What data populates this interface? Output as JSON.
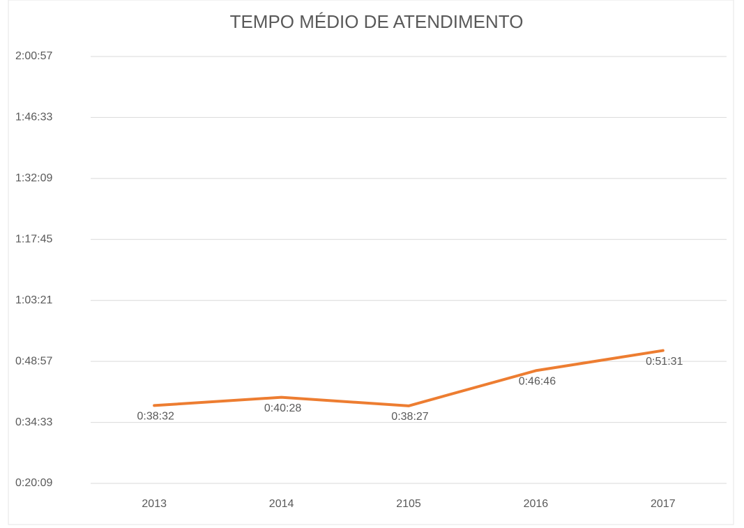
{
  "chart_data": {
    "type": "line",
    "title": "TEMPO MÉDIO DE ATENDIMENTO",
    "categories": [
      "2013",
      "2014",
      "2105",
      "2016",
      "2017"
    ],
    "series": [
      {
        "name": "Tempo médio",
        "color": "#ed7d31",
        "values": [
          2312,
          2428,
          2307,
          2806,
          3091
        ],
        "value_labels": [
          "0:38:32",
          "0:40:28",
          "0:38:27",
          "0:46:46",
          "0:51:31"
        ]
      }
    ],
    "ylim": [
      1209,
      7257
    ],
    "yticks": [
      {
        "value": 1209,
        "label": "0:20:09"
      },
      {
        "value": 2073,
        "label": "0:34:33"
      },
      {
        "value": 2937,
        "label": "0:48:57"
      },
      {
        "value": 3801,
        "label": "1:03:21"
      },
      {
        "value": 4665,
        "label": "1:17:45"
      },
      {
        "value": 5529,
        "label": "1:32:09"
      },
      {
        "value": 6393,
        "label": "1:46:33"
      },
      {
        "value": 7257,
        "label": "2:00:57"
      }
    ],
    "grid": true
  }
}
